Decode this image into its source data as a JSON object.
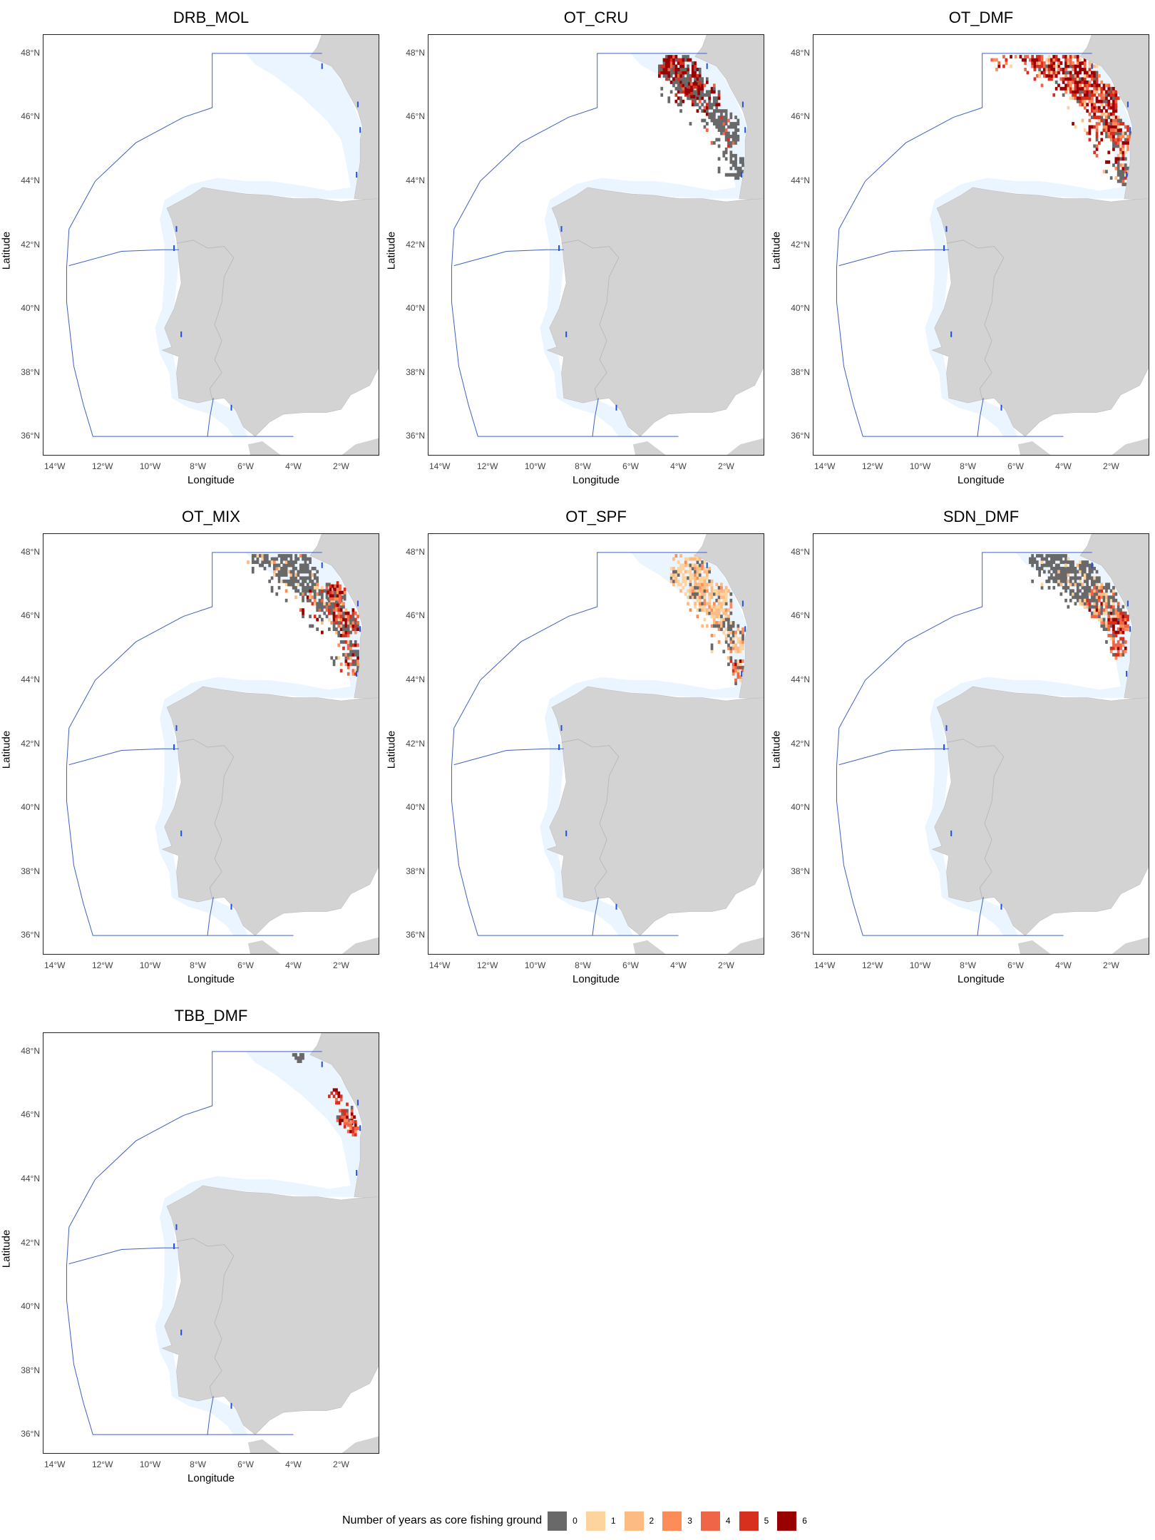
{
  "panels": [
    {
      "title": "DRB_MOL",
      "ylabel": "Latitude",
      "xlabel": "Longitude"
    },
    {
      "title": "OT_CRU",
      "ylabel": "Latitude",
      "xlabel": "Longitude"
    },
    {
      "title": "OT_DMF",
      "ylabel": "Latitude",
      "xlabel": "Longitude"
    },
    {
      "title": "OT_MIX",
      "ylabel": "Latitude",
      "xlabel": "Longitude"
    },
    {
      "title": "OT_SPF",
      "ylabel": "Latitude",
      "xlabel": "Longitude"
    },
    {
      "title": "SDN_DMF",
      "ylabel": "Latitude",
      "xlabel": "Longitude"
    },
    {
      "title": "TBB_DMF",
      "ylabel": "Latitude",
      "xlabel": "Longitude"
    }
  ],
  "axes": {
    "x_ticks": [
      "14°W",
      "12°W",
      "10°W",
      "8°W",
      "6°W",
      "4°W",
      "2°W"
    ],
    "y_ticks": [
      "48°N",
      "46°N",
      "44°N",
      "42°N",
      "40°N",
      "38°N",
      "36°N"
    ],
    "xlim": [
      -14.5,
      -0.4
    ],
    "ylim": [
      35.4,
      48.6
    ]
  },
  "legend": {
    "title": "Number of years as core fishing ground",
    "items": [
      {
        "label": "0",
        "color": "#696969"
      },
      {
        "label": "1",
        "color": "#FDD49E"
      },
      {
        "label": "2",
        "color": "#FDBB84"
      },
      {
        "label": "3",
        "color": "#FC8D59"
      },
      {
        "label": "4",
        "color": "#EF6548"
      },
      {
        "label": "5",
        "color": "#D7301F"
      },
      {
        "label": "6",
        "color": "#990000"
      }
    ]
  },
  "colors": {
    "land": "#D3D3D3",
    "shelf": "#EBF5FF",
    "boundary": "#4060C0",
    "coast_highlight": "#2050E0"
  }
}
